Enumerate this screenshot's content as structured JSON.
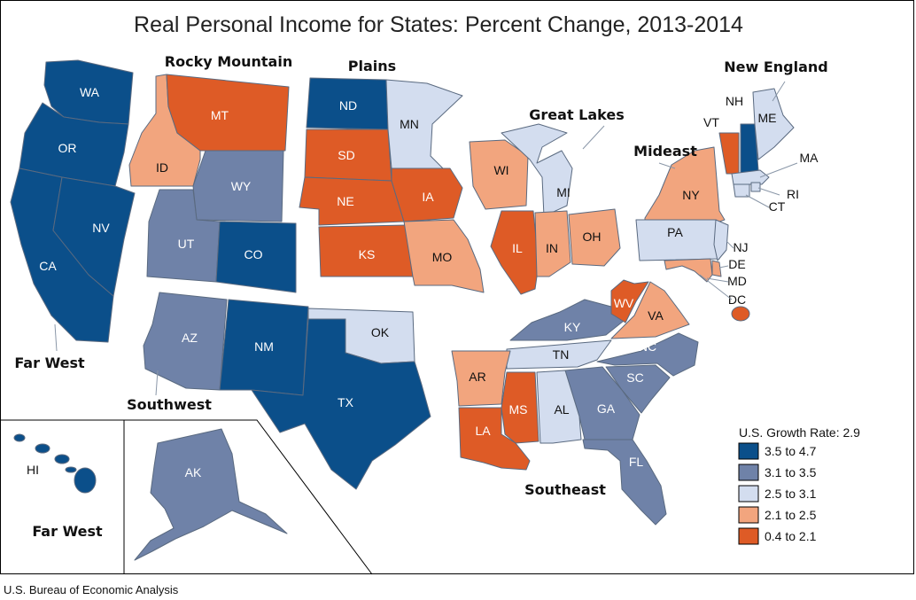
{
  "title": "Real Personal Income for States: Percent Change, 2013-2014",
  "source": "U.S. Bureau of Economic Analysis",
  "legend": {
    "title": "U.S. Growth Rate: 2.9",
    "bins": [
      {
        "label": "3.5 to 4.7",
        "color": "#0b4f8a"
      },
      {
        "label": "3.1 to 3.5",
        "color": "#6f82a8"
      },
      {
        "label": "2.5 to 3.1",
        "color": "#d3ddef"
      },
      {
        "label": "2.1 to 2.5",
        "color": "#f2a57e"
      },
      {
        "label": "0.4 to 2.1",
        "color": "#de5b26"
      }
    ]
  },
  "regions": [
    "Rocky Mountain",
    "Plains",
    "New England",
    "Great Lakes",
    "Mideast",
    "Far West",
    "Southwest",
    "Southeast",
    "Far West"
  ],
  "states": {
    "WA": {
      "bin": 0
    },
    "OR": {
      "bin": 0
    },
    "CA": {
      "bin": 0
    },
    "NV": {
      "bin": 0
    },
    "ID": {
      "bin": 3
    },
    "MT": {
      "bin": 4
    },
    "WY": {
      "bin": 1
    },
    "UT": {
      "bin": 1
    },
    "CO": {
      "bin": 0
    },
    "AZ": {
      "bin": 1
    },
    "NM": {
      "bin": 0
    },
    "TX": {
      "bin": 0
    },
    "OK": {
      "bin": 2
    },
    "ND": {
      "bin": 0
    },
    "SD": {
      "bin": 4
    },
    "NE": {
      "bin": 4
    },
    "KS": {
      "bin": 4
    },
    "MN": {
      "bin": 2
    },
    "IA": {
      "bin": 4
    },
    "MO": {
      "bin": 3
    },
    "WI": {
      "bin": 3
    },
    "IL": {
      "bin": 4
    },
    "MI": {
      "bin": 2
    },
    "IN": {
      "bin": 3
    },
    "OH": {
      "bin": 3
    },
    "KY": {
      "bin": 1
    },
    "TN": {
      "bin": 2
    },
    "AR": {
      "bin": 3
    },
    "LA": {
      "bin": 4
    },
    "MS": {
      "bin": 4
    },
    "AL": {
      "bin": 2
    },
    "GA": {
      "bin": 1
    },
    "FL": {
      "bin": 1
    },
    "SC": {
      "bin": 1
    },
    "NC": {
      "bin": 1
    },
    "VA": {
      "bin": 3
    },
    "WV": {
      "bin": 4
    },
    "PA": {
      "bin": 2
    },
    "NY": {
      "bin": 3
    },
    "NJ": {
      "bin": 2
    },
    "DE": {
      "bin": 3
    },
    "MD": {
      "bin": 3
    },
    "DC": {
      "bin": 4
    },
    "ME": {
      "bin": 2
    },
    "NH": {
      "bin": 0
    },
    "VT": {
      "bin": 4
    },
    "MA": {
      "bin": 2
    },
    "RI": {
      "bin": 2
    },
    "CT": {
      "bin": 2
    },
    "AK": {
      "bin": 1
    },
    "HI": {
      "bin": 0
    }
  }
}
